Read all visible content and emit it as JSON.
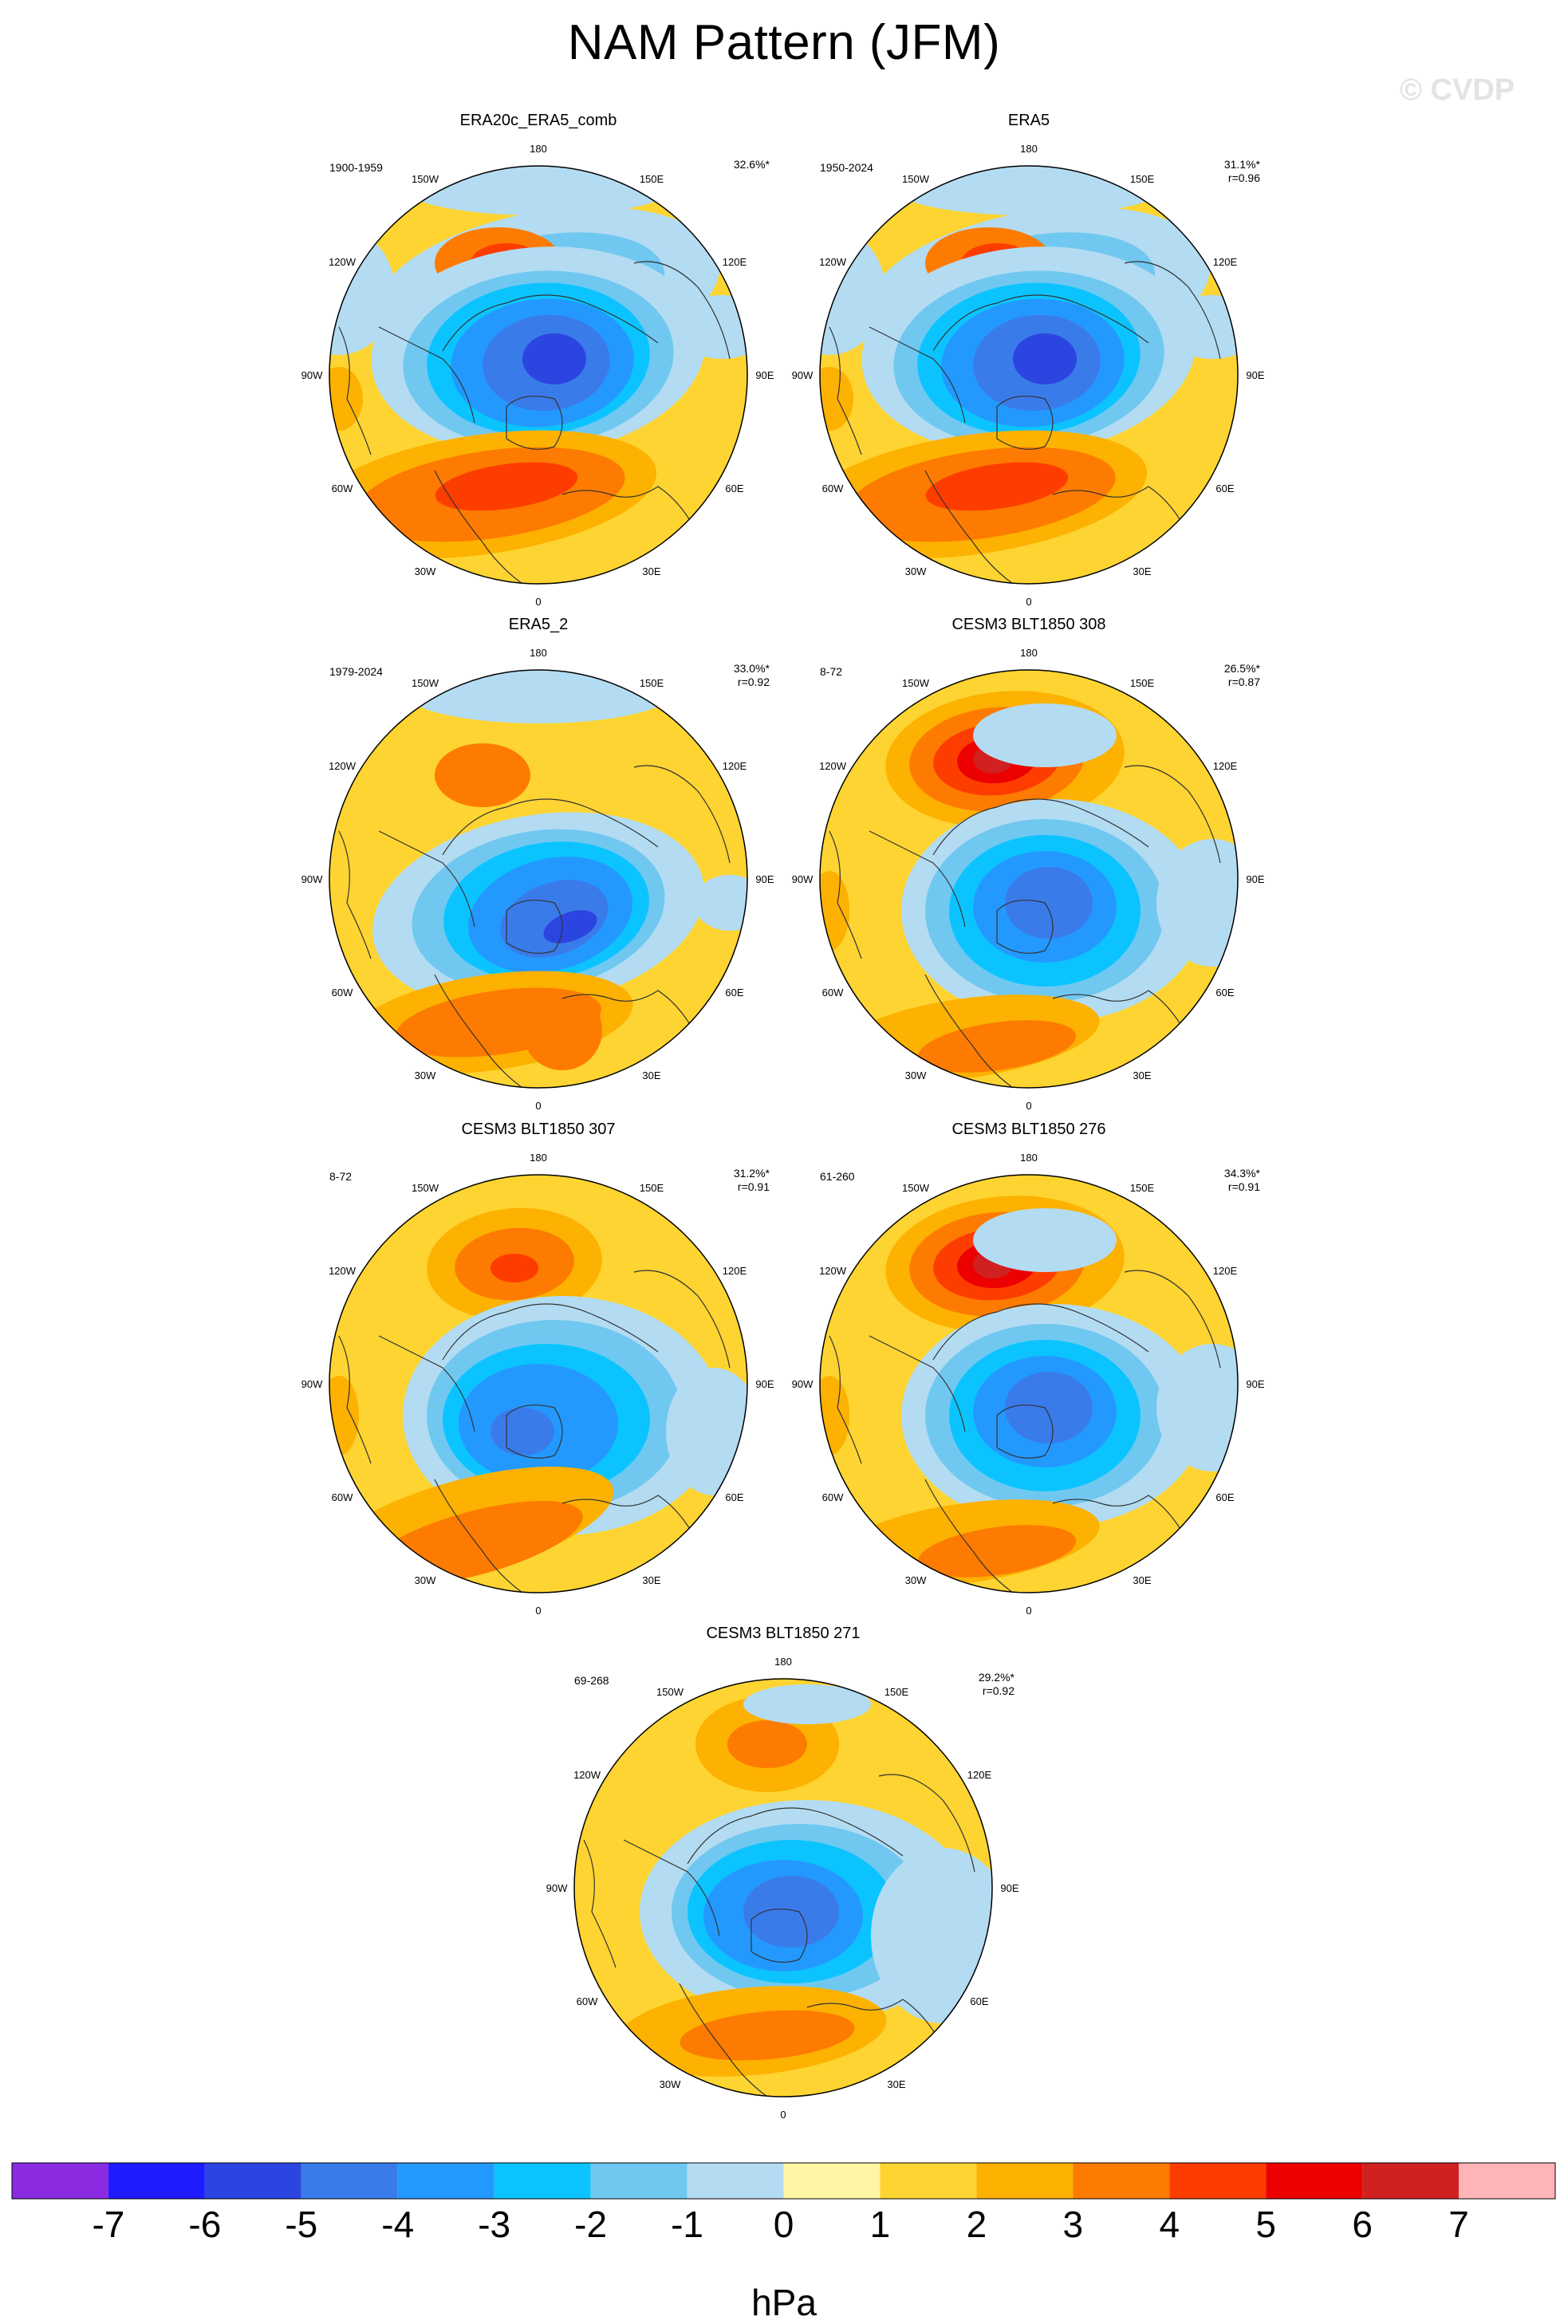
{
  "title": "NAM Pattern (JFM)",
  "watermark": "© CVDP",
  "lon_labels": [
    "180",
    "150E",
    "120E",
    "90E",
    "60E",
    "30E",
    "0",
    "30W",
    "60W",
    "90W",
    "120W",
    "150W"
  ],
  "panels": [
    {
      "name": "ERA20c_ERA5_comb",
      "years": "1900-1959",
      "pct": "32.6%*",
      "r": "",
      "style": "A"
    },
    {
      "name": "ERA5",
      "years": "1950-2024",
      "pct": "31.1%*",
      "r": "r=0.96",
      "style": "A"
    },
    {
      "name": "ERA5_2",
      "years": "1979-2024",
      "pct": "33.0%*",
      "r": "r=0.92",
      "style": "B"
    },
    {
      "name": "CESM3 BLT1850 308",
      "years": "8-72",
      "pct": "26.5%*",
      "r": "r=0.87",
      "style": "C"
    },
    {
      "name": "CESM3 BLT1850 307",
      "years": "8-72",
      "pct": "31.2%*",
      "r": "r=0.91",
      "style": "D"
    },
    {
      "name": "CESM3 BLT1850 276",
      "years": "61-260",
      "pct": "34.3%*",
      "r": "r=0.91",
      "style": "C"
    },
    {
      "name": "CESM3 BLT1850 271",
      "years": "69-268",
      "pct": "29.2%*",
      "r": "r=0.92",
      "style": "E"
    }
  ],
  "colorbar": {
    "colors": [
      "#8a2be2",
      "#1f1bff",
      "#2b45e0",
      "#3a7bea",
      "#2399ff",
      "#0bc4ff",
      "#70c8f0",
      "#b3dcf2",
      "#fff5a3",
      "#fdd431",
      "#fdb100",
      "#fd7b00",
      "#fd3d00",
      "#ec0000",
      "#d12020",
      "#ffb5b8"
    ],
    "labels": [
      "-7",
      "-6",
      "-5",
      "-4",
      "-3",
      "-2",
      "-1",
      "0",
      "1",
      "2",
      "3",
      "4",
      "5",
      "6",
      "7"
    ],
    "units": "hPa"
  }
}
